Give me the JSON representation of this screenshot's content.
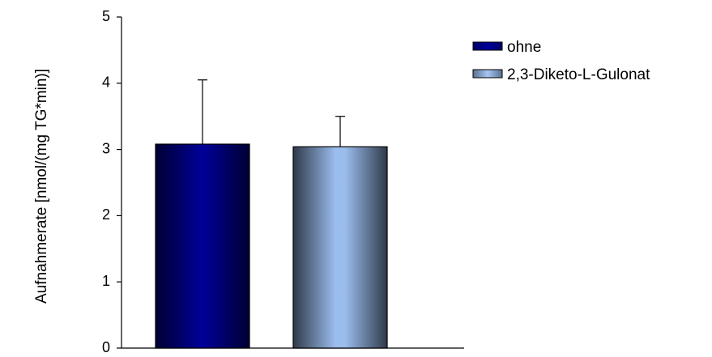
{
  "chart_data": {
    "type": "bar",
    "title": "",
    "xlabel": "",
    "ylabel": "Aufnahmerate [nmol/(mg TG*min)]",
    "ylim": [
      0,
      5
    ],
    "yticks": [
      "0",
      "1",
      "2",
      "3",
      "4",
      "5"
    ],
    "grid": false,
    "legend_position": "top-right",
    "series": [
      {
        "name": "ohne",
        "value": 3.08,
        "error": 0.97,
        "color": "#000080"
      },
      {
        "name": "2,3-Diketo-L-Gulonat",
        "value": 3.04,
        "error": 0.46,
        "color": "#99BBEE"
      }
    ]
  }
}
